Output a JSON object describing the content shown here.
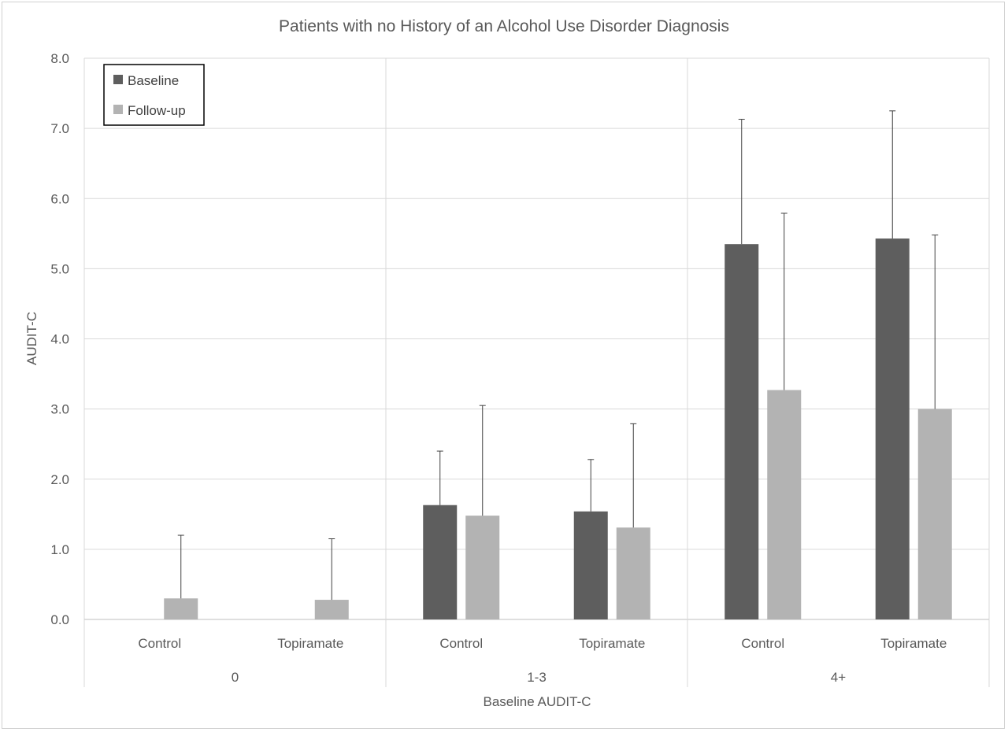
{
  "chart_data": {
    "type": "bar",
    "title": "Patients with no History of an Alcohol Use Disorder Diagnosis",
    "xlabel": "Baseline AUDIT-C",
    "ylabel": "AUDIT-C",
    "ylim": [
      0,
      8
    ],
    "y_ticks": [
      "0.0",
      "1.0",
      "2.0",
      "3.0",
      "4.0",
      "5.0",
      "6.0",
      "7.0",
      "8.0"
    ],
    "grid": true,
    "legend_position": "top-left",
    "groups": [
      {
        "label": "0",
        "categories": [
          "Control",
          "Topiramate"
        ]
      },
      {
        "label": "1-3",
        "categories": [
          "Control",
          "Topiramate"
        ]
      },
      {
        "label": "4+",
        "categories": [
          "Control",
          "Topiramate"
        ]
      }
    ],
    "series": [
      {
        "name": "Baseline",
        "color": "#5e5e5e",
        "values": [
          0.0,
          0.0,
          1.63,
          1.54,
          5.35,
          5.43
        ],
        "errors": [
          0.0,
          0.0,
          0.77,
          0.74,
          1.78,
          1.82
        ]
      },
      {
        "name": "Follow-up",
        "color": "#b3b3b3",
        "values": [
          0.3,
          0.28,
          1.48,
          1.31,
          3.27,
          3.0
        ],
        "errors": [
          0.9,
          0.87,
          1.57,
          1.48,
          2.52,
          2.48
        ]
      }
    ]
  }
}
